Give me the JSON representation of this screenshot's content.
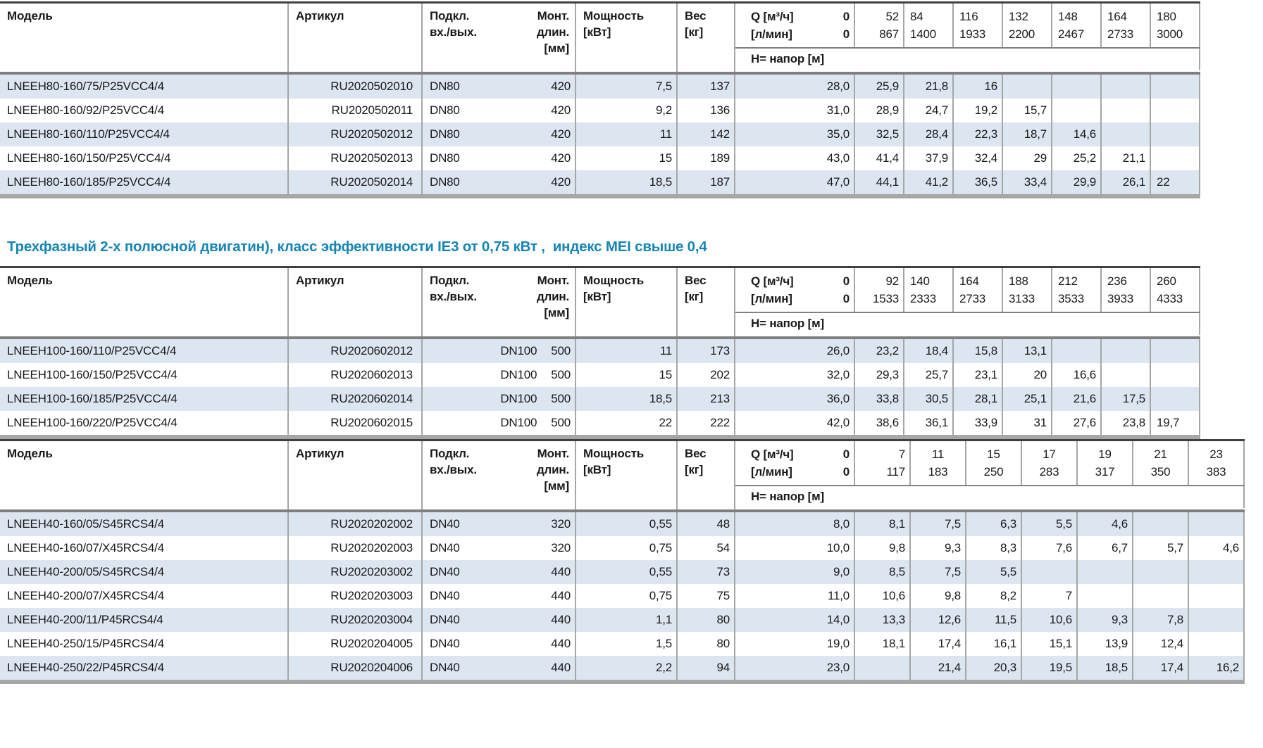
{
  "heading": {
    "text": "Трехфазный 2-х полюсной двигатин), класс эффективности IE3 от 0,75 кВт ,  индекс MEI свыше 0,4",
    "color": "#1585b5"
  },
  "colors": {
    "row_alt_blue": "#dce6f1",
    "grid_line": "#a6a6a6",
    "header_separator": "#7f7f7f",
    "table_top_border": "#404040",
    "table_bottom_border": "#a6a6a6",
    "heading_blue": "#1585b5",
    "text": "#1a1a1a"
  },
  "column_headers": {
    "model": "Модель",
    "article": "Артикул",
    "connection": [
      "Подкл.",
      "вх./вых."
    ],
    "mount": [
      "Монт.",
      "длин.",
      "[мм]"
    ],
    "power": [
      "Мощность",
      "[кВт]"
    ],
    "weight": [
      "Вес",
      "[кг]"
    ],
    "q_row1_label": "Q [м³/ч]",
    "q_row2_label": "[л/мин]",
    "q_zero": "0",
    "head_row_label": "Н= напор [м]"
  },
  "tables": [
    {
      "series": "LNEEH80",
      "q_columns": [
        [
          "52",
          "867"
        ],
        [
          "84",
          "1400"
        ],
        [
          "116",
          "1933"
        ],
        [
          "132",
          "2200"
        ],
        [
          "148",
          "2467"
        ],
        [
          "164",
          "2733"
        ],
        [
          "180",
          "3000"
        ]
      ],
      "rows": [
        {
          "model": "LNEEH80-160/75/P25VCC4/4",
          "article": "RU2020502010",
          "connection": "DN80",
          "mount_length": "420",
          "power_kw": "7,5",
          "weight_kg": "137",
          "head_m": [
            "28,0",
            "25,9",
            "21,8",
            "16",
            "",
            "",
            "",
            ""
          ]
        },
        {
          "model": "LNEEH80-160/92/P25VCC4/4",
          "article": "RU2020502011",
          "connection": "DN80",
          "mount_length": "420",
          "power_kw": "9,2",
          "weight_kg": "136",
          "head_m": [
            "31,0",
            "28,9",
            "24,7",
            "19,2",
            "15,7",
            "",
            "",
            ""
          ]
        },
        {
          "model": "LNEEH80-160/110/P25VCC4/4",
          "article": "RU2020502012",
          "connection": "DN80",
          "mount_length": "420",
          "power_kw": "11",
          "weight_kg": "142",
          "head_m": [
            "35,0",
            "32,5",
            "28,4",
            "22,3",
            "18,7",
            "14,6",
            "",
            ""
          ]
        },
        {
          "model": "LNEEH80-160/150/P25VCC4/4",
          "article": "RU2020502013",
          "connection": "DN80",
          "mount_length": "420",
          "power_kw": "15",
          "weight_kg": "189",
          "head_m": [
            "43,0",
            "41,4",
            "37,9",
            "32,4",
            "29",
            "25,2",
            "21,1",
            ""
          ]
        },
        {
          "model": "LNEEH80-160/185/P25VCC4/4",
          "article": "RU2020502014",
          "connection": "DN80",
          "mount_length": "420",
          "power_kw": "18,5",
          "weight_kg": "187",
          "head_m": [
            "47,0",
            "44,1",
            "41,2",
            "36,5",
            "33,4",
            "29,9",
            "26,1",
            "22"
          ]
        }
      ]
    },
    {
      "series": "LNEEH100",
      "q_columns": [
        [
          "92",
          "1533"
        ],
        [
          "140",
          "2333"
        ],
        [
          "164",
          "2733"
        ],
        [
          "188",
          "3133"
        ],
        [
          "212",
          "3533"
        ],
        [
          "236",
          "3933"
        ],
        [
          "260",
          "4333"
        ]
      ],
      "rows": [
        {
          "model": "LNEEH100-160/110/P25VCC4/4",
          "article": "RU2020602012",
          "connection": "DN100",
          "mount_length": "500",
          "power_kw": "11",
          "weight_kg": "173",
          "head_m": [
            "26,0",
            "23,2",
            "18,4",
            "15,8",
            "13,1",
            "",
            "",
            ""
          ]
        },
        {
          "model": "LNEEH100-160/150/P25VCC4/4",
          "article": "RU2020602013",
          "connection": "DN100",
          "mount_length": "500",
          "power_kw": "15",
          "weight_kg": "202",
          "head_m": [
            "32,0",
            "29,3",
            "25,7",
            "23,1",
            "20",
            "16,6",
            "",
            ""
          ]
        },
        {
          "model": "LNEEH100-160/185/P25VCC4/4",
          "article": "RU2020602014",
          "connection": "DN100",
          "mount_length": "500",
          "power_kw": "18,5",
          "weight_kg": "213",
          "head_m": [
            "36,0",
            "33,8",
            "30,5",
            "28,1",
            "25,1",
            "21,6",
            "17,5",
            ""
          ]
        },
        {
          "model": "LNEEH100-160/220/P25VCC4/4",
          "article": "RU2020602015",
          "connection": "DN100",
          "mount_length": "500",
          "power_kw": "22",
          "weight_kg": "222",
          "head_m": [
            "42,0",
            "38,6",
            "36,1",
            "33,9",
            "31",
            "27,6",
            "23,8",
            "19,7"
          ]
        }
      ]
    },
    {
      "series": "LNEEH40",
      "q_columns": [
        [
          "7",
          "117"
        ],
        [
          "11",
          "183"
        ],
        [
          "15",
          "250"
        ],
        [
          "17",
          "283"
        ],
        [
          "19",
          "317"
        ],
        [
          "21",
          "350"
        ],
        [
          "23",
          "383"
        ]
      ],
      "rows": [
        {
          "model": "LNEEH40-160/05/S45RCS4/4",
          "article": "RU2020202002",
          "connection": "DN40",
          "mount_length": "320",
          "power_kw": "0,55",
          "weight_kg": "48",
          "head_m": [
            "8,0",
            "8,1",
            "7,5",
            "6,3",
            "5,5",
            "4,6",
            "",
            ""
          ]
        },
        {
          "model": "LNEEH40-160/07/X45RCS4/4",
          "article": "RU2020202003",
          "connection": "DN40",
          "mount_length": "320",
          "power_kw": "0,75",
          "weight_kg": "54",
          "head_m": [
            "10,0",
            "9,8",
            "9,3",
            "8,3",
            "7,6",
            "6,7",
            "5,7",
            "4,6"
          ]
        },
        {
          "model": "LNEEH40-200/05/S45RCS4/4",
          "article": "RU2020203002",
          "connection": "DN40",
          "mount_length": "440",
          "power_kw": "0,55",
          "weight_kg": "73",
          "head_m": [
            "9,0",
            "8,5",
            "7,5",
            "5,5",
            "",
            "",
            "",
            ""
          ]
        },
        {
          "model": "LNEEH40-200/07/X45RCS4/4",
          "article": "RU2020203003",
          "connection": "DN40",
          "mount_length": "440",
          "power_kw": "0,75",
          "weight_kg": "75",
          "head_m": [
            "11,0",
            "10,6",
            "9,8",
            "8,2",
            "7",
            "",
            "",
            ""
          ]
        },
        {
          "model": "LNEEH40-200/11/P45RCS4/4",
          "article": "RU2020203004",
          "connection": "DN40",
          "mount_length": "440",
          "power_kw": "1,1",
          "weight_kg": "80",
          "head_m": [
            "14,0",
            "13,3",
            "12,6",
            "11,5",
            "10,6",
            "9,3",
            "7,8",
            ""
          ]
        },
        {
          "model": "LNEEH40-250/15/P45RCS4/4",
          "article": "RU2020204005",
          "connection": "DN40",
          "mount_length": "440",
          "power_kw": "1,5",
          "weight_kg": "80",
          "head_m": [
            "19,0",
            "18,1",
            "17,4",
            "16,1",
            "15,1",
            "13,9",
            "12,4",
            ""
          ]
        },
        {
          "model": "LNEEH40-250/22/P45RCS4/4",
          "article": "RU2020204006",
          "connection": "DN40",
          "mount_length": "440",
          "power_kw": "2,2",
          "weight_kg": "94",
          "head_m": [
            "23,0",
            "",
            "21,4",
            "20,3",
            "19,5",
            "18,5",
            "17,4",
            "16,2"
          ]
        }
      ]
    }
  ]
}
